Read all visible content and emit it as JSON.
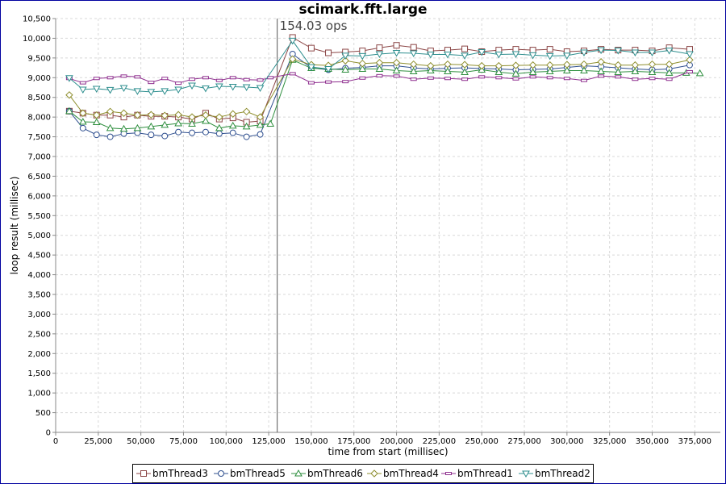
{
  "chart_data": {
    "type": "line",
    "title": "scimark.fft.large",
    "xlabel": "time from start (millisec)",
    "ylabel": "loop result (millisec)",
    "xlim": [
      0,
      390000
    ],
    "ylim": [
      0,
      10500
    ],
    "x_ticks": [
      "0",
      "25,000",
      "50,000",
      "75,000",
      "100,000",
      "125,000",
      "150,000",
      "175,000",
      "200,000",
      "225,000",
      "250,000",
      "275,000",
      "300,000",
      "325,000",
      "350,000",
      "375,000"
    ],
    "y_ticks": [
      "0",
      "500",
      "1,000",
      "1,500",
      "2,000",
      "2,500",
      "3,000",
      "3,500",
      "4,000",
      "4,500",
      "5,000",
      "5,500",
      "6,000",
      "6,500",
      "7,000",
      "7,500",
      "8,000",
      "8,500",
      "9,000",
      "9,500",
      "10,000",
      "10,500"
    ],
    "grid": true,
    "legend_position": "bottom",
    "annotation": {
      "text": "154.03 ops",
      "x": 130000
    },
    "series": [
      {
        "name": "bmThread3",
        "marker": "square",
        "color": "#8b4545",
        "x": [
          8000,
          16000,
          24000,
          32000,
          40000,
          48000,
          56000,
          64000,
          72000,
          80000,
          88000,
          96000,
          104000,
          112000,
          120000,
          139000,
          150000,
          160000,
          170000,
          180000,
          190000,
          200000,
          210000,
          220000,
          230000,
          240000,
          250000,
          260000,
          270000,
          280000,
          290000,
          300000,
          310000,
          320000,
          330000,
          340000,
          350000,
          360000,
          372000
        ],
        "y": [
          8150,
          8100,
          8050,
          8050,
          8000,
          8050,
          8020,
          8020,
          8000,
          7950,
          8100,
          7950,
          7980,
          7870,
          7900,
          10020,
          9750,
          9630,
          9650,
          9680,
          9760,
          9820,
          9770,
          9680,
          9700,
          9730,
          9660,
          9700,
          9720,
          9700,
          9720,
          9660,
          9680,
          9720,
          9700,
          9700,
          9680,
          9760,
          9720
        ]
      },
      {
        "name": "bmThread5",
        "marker": "circle",
        "color": "#2f4f8f",
        "x": [
          8000,
          16000,
          24000,
          32000,
          40000,
          48000,
          56000,
          64000,
          72000,
          80000,
          88000,
          96000,
          104000,
          112000,
          120000,
          139000,
          150000,
          160000,
          170000,
          180000,
          190000,
          200000,
          210000,
          220000,
          230000,
          240000,
          250000,
          260000,
          270000,
          280000,
          290000,
          300000,
          310000,
          320000,
          330000,
          340000,
          350000,
          360000,
          372000
        ],
        "y": [
          8150,
          7720,
          7550,
          7500,
          7580,
          7600,
          7550,
          7520,
          7620,
          7600,
          7620,
          7580,
          7600,
          7500,
          7560,
          9600,
          9250,
          9200,
          9240,
          9260,
          9300,
          9300,
          9250,
          9220,
          9240,
          9250,
          9230,
          9220,
          9200,
          9210,
          9220,
          9260,
          9300,
          9280,
          9250,
          9220,
          9200,
          9220,
          9320
        ]
      },
      {
        "name": "bmThread6",
        "marker": "triangle-up",
        "color": "#2f8f3f",
        "x": [
          8000,
          16000,
          24000,
          32000,
          40000,
          48000,
          56000,
          64000,
          72000,
          80000,
          88000,
          96000,
          104000,
          112000,
          120000,
          126000,
          139000,
          150000,
          160000,
          170000,
          180000,
          190000,
          200000,
          210000,
          220000,
          230000,
          240000,
          250000,
          260000,
          270000,
          280000,
          290000,
          300000,
          310000,
          320000,
          330000,
          340000,
          350000,
          360000,
          370000,
          378000
        ],
        "y": [
          8150,
          7880,
          7870,
          7720,
          7700,
          7720,
          7760,
          7800,
          7840,
          7830,
          7900,
          7720,
          7780,
          7760,
          7800,
          7830,
          9450,
          9240,
          9220,
          9200,
          9220,
          9220,
          9180,
          9160,
          9180,
          9160,
          9140,
          9200,
          9140,
          9100,
          9140,
          9160,
          9180,
          9180,
          9160,
          9140,
          9160,
          9140,
          9120,
          9120,
          9110
        ]
      },
      {
        "name": "bmThread4",
        "marker": "diamond",
        "color": "#8f8f2f",
        "x": [
          8000,
          16000,
          24000,
          32000,
          40000,
          48000,
          56000,
          64000,
          72000,
          80000,
          88000,
          96000,
          104000,
          112000,
          120000,
          139000,
          150000,
          160000,
          170000,
          180000,
          190000,
          200000,
          210000,
          220000,
          230000,
          240000,
          250000,
          260000,
          270000,
          280000,
          290000,
          300000,
          310000,
          320000,
          330000,
          340000,
          350000,
          360000,
          372000
        ],
        "y": [
          8560,
          8100,
          8050,
          8140,
          8100,
          8050,
          8060,
          8040,
          8060,
          8000,
          8050,
          8000,
          8080,
          8140,
          8000,
          9470,
          9330,
          9310,
          9430,
          9360,
          9380,
          9380,
          9340,
          9300,
          9340,
          9330,
          9300,
          9300,
          9310,
          9320,
          9320,
          9330,
          9340,
          9400,
          9320,
          9320,
          9340,
          9340,
          9450
        ]
      },
      {
        "name": "bmThread1",
        "marker": "square-line",
        "color": "#8f2f8f",
        "x": [
          8000,
          16000,
          24000,
          32000,
          40000,
          48000,
          56000,
          64000,
          72000,
          80000,
          88000,
          96000,
          104000,
          112000,
          120000,
          126000,
          139000,
          150000,
          160000,
          170000,
          180000,
          190000,
          200000,
          210000,
          220000,
          230000,
          240000,
          250000,
          260000,
          270000,
          280000,
          290000,
          300000,
          310000,
          320000,
          330000,
          340000,
          350000,
          360000,
          372000
        ],
        "y": [
          8980,
          8870,
          8980,
          9000,
          9040,
          9020,
          8880,
          8980,
          8860,
          8960,
          9000,
          8930,
          9000,
          8950,
          8940,
          9000,
          9100,
          8870,
          8890,
          8900,
          8990,
          9050,
          9040,
          8960,
          8990,
          8980,
          8960,
          9020,
          9000,
          8970,
          9020,
          9000,
          8980,
          8930,
          9040,
          9020,
          8960,
          8980,
          8960,
          9150
        ]
      },
      {
        "name": "bmThread2",
        "marker": "triangle-down",
        "color": "#2f8f8f",
        "x": [
          8000,
          16000,
          24000,
          32000,
          40000,
          48000,
          56000,
          64000,
          72000,
          80000,
          88000,
          96000,
          104000,
          112000,
          120000,
          139000,
          150000,
          160000,
          170000,
          180000,
          190000,
          200000,
          210000,
          220000,
          230000,
          240000,
          250000,
          260000,
          270000,
          280000,
          290000,
          300000,
          310000,
          320000,
          330000,
          340000,
          350000,
          360000,
          372000
        ],
        "y": [
          8990,
          8700,
          8720,
          8690,
          8740,
          8660,
          8640,
          8660,
          8700,
          8800,
          8730,
          8780,
          8770,
          8760,
          8740,
          9940,
          9270,
          9220,
          9560,
          9550,
          9600,
          9630,
          9620,
          9590,
          9590,
          9560,
          9650,
          9590,
          9600,
          9570,
          9550,
          9560,
          9640,
          9700,
          9690,
          9640,
          9640,
          9690,
          9600
        ]
      }
    ]
  }
}
